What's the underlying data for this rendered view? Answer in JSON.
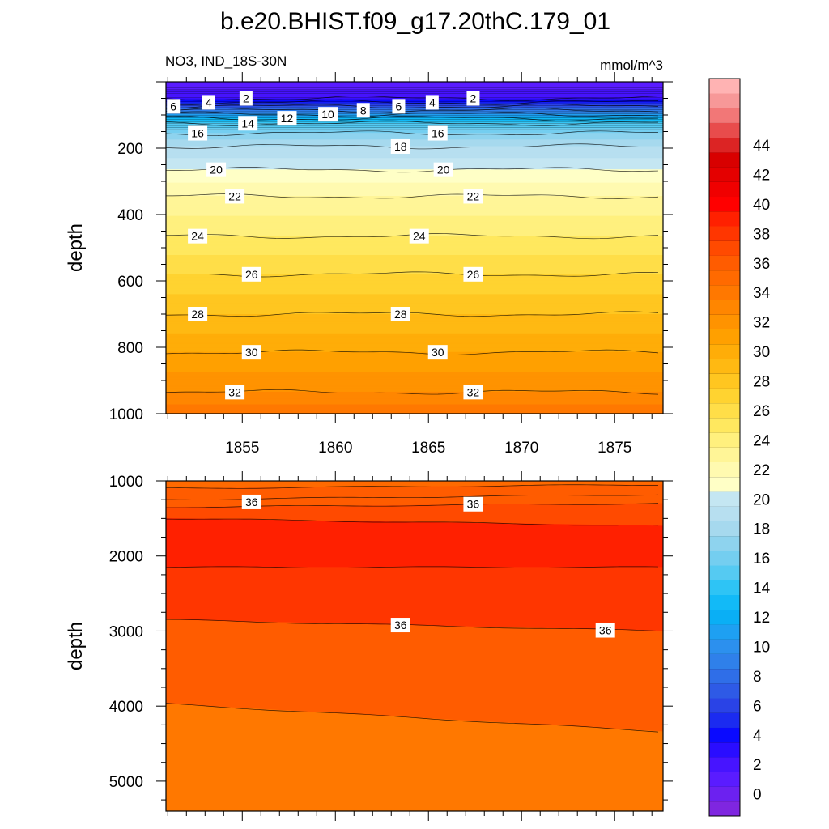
{
  "chart_data": [
    {
      "type": "contour",
      "title": "b.e20.BHIST.f09_g17.20thC.179_01",
      "subtitle_left": "NO3, IND_18S-30N",
      "subtitle_right": "mmol/m^3",
      "ylabel": "depth",
      "xlim": [
        1850.9,
        1877.6
      ],
      "ylim": [
        0,
        1000
      ],
      "y_reversed": true,
      "x_ticks": [
        1855,
        1860,
        1865,
        1870,
        1875
      ],
      "x_tick_labels": [
        "1855",
        "1860",
        "1865",
        "1870",
        "1875"
      ],
      "y_ticks": [
        200,
        400,
        600,
        800,
        1000
      ],
      "y_tick_labels": [
        "200",
        "400",
        "600",
        "800",
        "1000"
      ],
      "contour_levels": [
        0,
        1,
        2,
        3,
        4,
        5,
        6,
        7,
        8,
        9,
        10,
        11,
        12,
        13,
        14,
        15,
        16,
        17,
        18,
        19,
        20,
        21,
        22,
        23,
        24,
        25,
        26,
        27,
        28,
        29,
        30,
        31,
        32,
        33,
        34,
        35,
        36,
        37,
        38,
        39,
        40,
        41,
        42,
        43,
        44,
        45
      ],
      "isolines": [
        {
          "level": 2,
          "depth": 50
        },
        {
          "level": 4,
          "depth": 62
        },
        {
          "level": 6,
          "depth": 74
        },
        {
          "level": 8,
          "depth": 86
        },
        {
          "level": 10,
          "depth": 98
        },
        {
          "level": 12,
          "depth": 110
        },
        {
          "level": 14,
          "depth": 125
        },
        {
          "level": 16,
          "depth": 155
        },
        {
          "level": 18,
          "depth": 195
        },
        {
          "level": 20,
          "depth": 265
        },
        {
          "level": 22,
          "depth": 345
        },
        {
          "level": 24,
          "depth": 465
        },
        {
          "level": 26,
          "depth": 580
        },
        {
          "level": 28,
          "depth": 700
        },
        {
          "level": 30,
          "depth": 815
        },
        {
          "level": 32,
          "depth": 935
        },
        {
          "level": 34,
          "depth": 1010
        }
      ],
      "contour_labels": [
        {
          "text": "2",
          "x": 1855.2,
          "depth": 50
        },
        {
          "text": "2",
          "x": 1867.4,
          "depth": 50
        },
        {
          "text": "4",
          "x": 1853.2,
          "depth": 62
        },
        {
          "text": "4",
          "x": 1865.2,
          "depth": 62
        },
        {
          "text": "6",
          "x": 1851.3,
          "depth": 74
        },
        {
          "text": "6",
          "x": 1863.4,
          "depth": 74
        },
        {
          "text": "8",
          "x": 1861.5,
          "depth": 86
        },
        {
          "text": "10",
          "x": 1859.6,
          "depth": 98
        },
        {
          "text": "12",
          "x": 1857.4,
          "depth": 110
        },
        {
          "text": "14",
          "x": 1855.3,
          "depth": 125
        },
        {
          "text": "16",
          "x": 1852.6,
          "depth": 155
        },
        {
          "text": "16",
          "x": 1865.5,
          "depth": 155
        },
        {
          "text": "18",
          "x": 1863.5,
          "depth": 195
        },
        {
          "text": "20",
          "x": 1853.6,
          "depth": 265
        },
        {
          "text": "20",
          "x": 1865.8,
          "depth": 265
        },
        {
          "text": "22",
          "x": 1854.6,
          "depth": 345
        },
        {
          "text": "22",
          "x": 1867.4,
          "depth": 345
        },
        {
          "text": "24",
          "x": 1852.6,
          "depth": 465
        },
        {
          "text": "24",
          "x": 1864.5,
          "depth": 465
        },
        {
          "text": "26",
          "x": 1855.5,
          "depth": 580
        },
        {
          "text": "26",
          "x": 1867.4,
          "depth": 580
        },
        {
          "text": "28",
          "x": 1852.6,
          "depth": 700
        },
        {
          "text": "28",
          "x": 1863.5,
          "depth": 700
        },
        {
          "text": "30",
          "x": 1855.5,
          "depth": 815
        },
        {
          "text": "30",
          "x": 1865.5,
          "depth": 815
        },
        {
          "text": "32",
          "x": 1854.6,
          "depth": 935
        },
        {
          "text": "32",
          "x": 1867.4,
          "depth": 935
        }
      ]
    },
    {
      "type": "contour",
      "ylabel": "depth",
      "xlim": [
        1850.9,
        1877.6
      ],
      "ylim": [
        1000,
        5400
      ],
      "y_reversed": true,
      "y_ticks": [
        1000,
        2000,
        3000,
        4000,
        5000
      ],
      "y_tick_labels": [
        "1000",
        "2000",
        "3000",
        "4000",
        "5000"
      ],
      "isolines": [
        {
          "level": 34.5,
          "depth_start": 1100,
          "depth_end": 1050
        },
        {
          "level": 35,
          "depth_start": 1250,
          "depth_end": 1180
        },
        {
          "level": 35.5,
          "depth_start": 1350,
          "depth_end": 1300
        },
        {
          "level": 36,
          "depth_start": 1500,
          "depth_end": 1600
        },
        {
          "level": 36.5,
          "depth_start": 2150,
          "depth_end": 2150
        },
        {
          "level": 36,
          "depth_start": 2850,
          "depth_end": 3000
        },
        {
          "level": 35.5,
          "depth_start": 3970,
          "depth_end": 4340
        }
      ],
      "bands": [
        {
          "top_start": 1000,
          "top_end": 1000,
          "value": 34.6
        },
        {
          "top_start": 1100,
          "top_end": 1050,
          "value": 35.2
        },
        {
          "top_start": 1250,
          "top_end": 1180,
          "value": 35.6
        },
        {
          "top_start": 1350,
          "top_end": 1300,
          "value": 36.2
        },
        {
          "top_start": 1500,
          "top_end": 1600,
          "value": 38.5
        },
        {
          "top_start": 2150,
          "top_end": 2150,
          "value": 37.2
        },
        {
          "top_start": 2850,
          "top_end": 3000,
          "value": 35.8
        },
        {
          "top_start": 3970,
          "top_end": 4340,
          "value": 33.8
        }
      ],
      "contour_labels": [
        {
          "text": "36",
          "x": 1855.5,
          "depth": 1280
        },
        {
          "text": "36",
          "x": 1867.4,
          "depth": 1310
        },
        {
          "text": "36",
          "x": 1863.5,
          "depth": 2920
        },
        {
          "text": "36",
          "x": 1874.5,
          "depth": 2990
        }
      ]
    }
  ],
  "colorbar": {
    "tick_labels": [
      "0",
      "2",
      "4",
      "6",
      "8",
      "10",
      "12",
      "14",
      "16",
      "18",
      "20",
      "22",
      "24",
      "26",
      "28",
      "30",
      "32",
      "34",
      "36",
      "38",
      "40",
      "42",
      "44"
    ],
    "colors": [
      "#7f26e0",
      "#6c21f0",
      "#5a1cff",
      "#4714ff",
      "#2a0dff",
      "#0a0aff",
      "#1b2bf0",
      "#2a43e6",
      "#2e5ae6",
      "#2f6ee8",
      "#2f80ea",
      "#2c90ee",
      "#1ea0f2",
      "#0aaff5",
      "#12baf7",
      "#2ec4f5",
      "#55caf2",
      "#74cef0",
      "#8ed3ee",
      "#a6d9ee",
      "#b7dff0",
      "#c4e6f2",
      "#ffffc6",
      "#fffab0",
      "#fff597",
      "#fff07e",
      "#ffe85f",
      "#ffde48",
      "#ffd330",
      "#ffc620",
      "#ffb912",
      "#ffad08",
      "#ffa000",
      "#ff9300",
      "#ff8600",
      "#ff7800",
      "#ff6a00",
      "#ff5c00",
      "#ff4a00",
      "#ff3600",
      "#ff2000",
      "#ff0000",
      "#f00000",
      "#e40000",
      "#d80000",
      "#dc2424",
      "#e84c4c",
      "#f27777",
      "#f79898",
      "#ffb3b3"
    ]
  }
}
